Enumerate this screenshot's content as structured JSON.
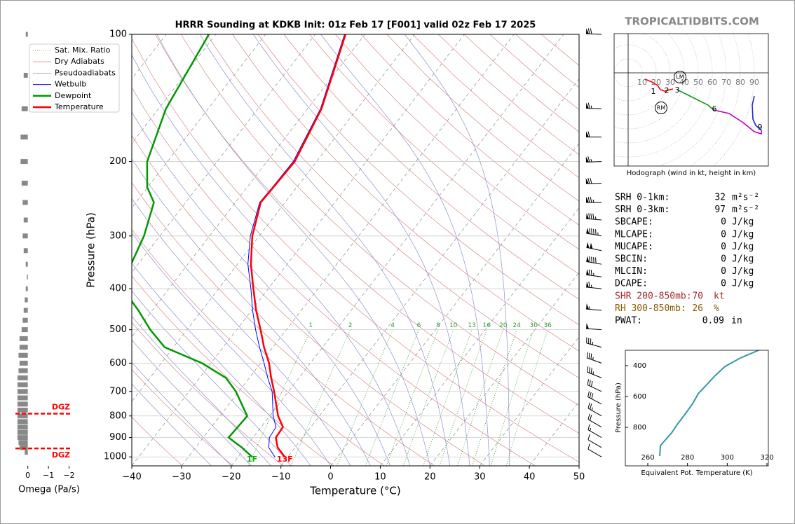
{
  "watermark": "TROPICALTIDBITS.COM",
  "chart_data": [
    {
      "type": "skewt",
      "title": "HRRR Sounding at KDKB Init: 01z Feb 17 [F001] valid 02z Feb 17 2025",
      "xlabel": "Temperature (°C)",
      "ylabel": "Pressure (hPa)",
      "xlim": [
        -40,
        50
      ],
      "xticks": [
        {
          "value": -40,
          "label": "−40"
        },
        {
          "value": -30,
          "label": "−30"
        },
        {
          "value": -20,
          "label": "−20"
        },
        {
          "value": -10,
          "label": "−10"
        },
        0,
        10,
        20,
        30,
        40,
        50
      ],
      "ylim": [
        1050,
        100
      ],
      "yticks": [
        100,
        200,
        300,
        400,
        500,
        600,
        700,
        800,
        900,
        1000
      ],
      "log_y": true,
      "grid": true,
      "pressure": [
        1000,
        950,
        900,
        850,
        800,
        700,
        650,
        600,
        550,
        500,
        450,
        400,
        350,
        300,
        250,
        230,
        200,
        150,
        100
      ],
      "reference_lines": [
        {
          "name": "Sat. Mix. Ratio",
          "color": "#2e9b2e"
        },
        {
          "name": "Dry Adiabats",
          "color": "#d98a8a"
        },
        {
          "name": "Pseudoadiabats",
          "color": "#8f8fcf"
        }
      ],
      "series": [
        {
          "name": "Wetbulb",
          "color": "#0000ff",
          "values": [
            -12.6,
            -15.3,
            -16.7,
            -17.0,
            -19.3,
            -23.3,
            -26.3,
            -29.3,
            -32.7,
            -36.2,
            -39.8,
            -43.5,
            -47.9,
            -51.8,
            -55.1,
            -54.9,
            -54.7,
            -57.4,
            -64.1
          ]
        },
        {
          "name": "Dewpoint",
          "color": "#009900",
          "values": [
            -17.2,
            -20.7,
            -24.9,
            -24.7,
            -24.5,
            -30.6,
            -34.7,
            -41.8,
            -51.8,
            -57.4,
            -62.8,
            -69.3,
            -71.4,
            -73.2,
            -76.4,
            -80.1,
            -84.1,
            -88.5,
            -91.4
          ]
        },
        {
          "name": "Temperature",
          "color": "#ff0000",
          "values": [
            -10.6,
            -13.5,
            -15.4,
            -15.6,
            -18.3,
            -22.9,
            -25.6,
            -28.3,
            -31.8,
            -35.2,
            -39.1,
            -43.0,
            -47.3,
            -51.4,
            -54.9,
            -54.7,
            -54.4,
            -57.2,
            -63.9
          ]
        }
      ],
      "mixing_ratios": [
        1,
        2,
        4,
        6,
        8,
        10,
        13,
        16,
        20,
        24,
        30,
        36
      ],
      "surface_labels": [
        {
          "text": "1F",
          "color": "#11aa11"
        },
        {
          "text": "13F",
          "color": "#ff0000"
        }
      ],
      "winds": {
        "pressure": [
          100,
          150,
          175,
          200,
          225,
          250,
          275,
          300,
          325,
          350,
          375,
          400,
          450,
          500,
          550,
          600,
          650,
          700,
          750,
          800,
          850,
          900,
          950,
          1000
        ],
        "speed": [
          70,
          65,
          60,
          65,
          70,
          75,
          85,
          95,
          100,
          90,
          75,
          65,
          55,
          50,
          35,
          35,
          35,
          30,
          30,
          25,
          20,
          15,
          10,
          10
        ],
        "direction": [
          272,
          272,
          270,
          268,
          268,
          270,
          275,
          280,
          282,
          280,
          278,
          276,
          275,
          274,
          285,
          290,
          292,
          295,
          298,
          300,
          300,
          300,
          300,
          300
        ]
      }
    },
    {
      "type": "omega",
      "xlabel": "Omega (Pa/s)",
      "color": "#888888",
      "xlim": [
        0.6,
        -2.05
      ],
      "xticks": [
        0,
        {
          "value": -1,
          "label": "−1"
        },
        {
          "value": -2,
          "label": "−2"
        }
      ],
      "pressure": [
        100,
        125,
        150,
        175,
        200,
        225,
        250,
        275,
        300,
        325,
        350,
        375,
        400,
        425,
        450,
        475,
        500,
        525,
        550,
        575,
        600,
        625,
        650,
        675,
        700,
        725,
        750,
        775,
        800,
        825,
        850,
        875,
        900,
        925,
        950,
        975
      ],
      "values": [
        0.1,
        0.2,
        0.3,
        0.35,
        0.35,
        0.3,
        0.25,
        0.2,
        0.25,
        0.2,
        0.1,
        0.05,
        0.1,
        0.15,
        0.2,
        0.25,
        0.3,
        0.4,
        0.4,
        0.45,
        0.4,
        0.45,
        0.5,
        0.5,
        0.5,
        0.5,
        0.5,
        0.5,
        0.5,
        0.5,
        0.5,
        0.5,
        0.5,
        0.45,
        0.4,
        0.15
      ],
      "dgz": {
        "label": "DGZ",
        "color": "#ff0000",
        "pressure": [
          790,
          955
        ]
      }
    },
    {
      "type": "hodograph",
      "caption": "Hodograph (wind in kt, height in km)",
      "rings": [
        10,
        20,
        30,
        40,
        50,
        60,
        70,
        80,
        90
      ],
      "segments": [
        {
          "color": "#ff0000",
          "u": [
            12,
            17,
            21,
            23,
            26,
            32
          ],
          "v": [
            -4.5,
            -6.5,
            -9,
            -12,
            -13,
            -11.5
          ]
        },
        {
          "color": "#119911",
          "u": [
            35,
            47,
            57,
            61
          ],
          "v": [
            -12,
            -18,
            -23,
            -26.5
          ]
        },
        {
          "color": "#bb00bb",
          "u": [
            61,
            72,
            82,
            90,
            95,
            95
          ],
          "v": [
            -26.5,
            -29,
            -35.5,
            -42,
            -43.5,
            -41
          ]
        },
        {
          "color": "#2222dd",
          "u": [
            95,
            91,
            89,
            88.5,
            90
          ],
          "v": [
            -41,
            -37.5,
            -33,
            -23,
            -16.5
          ]
        }
      ],
      "heights": {
        "labels": [
          1,
          2,
          3,
          6,
          9
        ],
        "u": [
          18,
          27.5,
          35,
          61.5,
          94
        ],
        "v": [
          -13.5,
          -13,
          -12.5,
          -26,
          -39
        ]
      },
      "motions": {
        "labels": [
          "LM",
          "RM"
        ],
        "u": [
          37,
          23.5
        ],
        "v": [
          -3,
          -25
        ]
      }
    },
    {
      "type": "line",
      "xlabel": "Equivalent Pot. Temperature (K)",
      "ylabel": "Pressure (hPa)",
      "color": "#3399aa",
      "xlim": [
        248.7,
        320.7
      ],
      "xticks": [
        260,
        280,
        300,
        320
      ],
      "ylim": [
        1050,
        300
      ],
      "yticks": [
        400,
        600,
        800
      ],
      "values": [
        266.0,
        266.4,
        269.2,
        272.0,
        274.8,
        279.1,
        282.6,
        285.4,
        289.7,
        293.9,
        298.9,
        306.6,
        315.8
      ],
      "pressure": [
        986,
        918,
        877,
        836,
        782,
        709,
        645,
        582,
        523,
        464,
        405,
        350,
        300
      ]
    }
  ],
  "indices": [
    {
      "label": "SRH 0-1km:",
      "value": 32,
      "unit": "m²s⁻²",
      "color": "#000000"
    },
    {
      "label": "SRH 0-3km:",
      "value": 97,
      "unit": "m²s⁻²",
      "color": "#000000"
    },
    {
      "label": "SBCAPE:",
      "value": 0,
      "unit": "J/kg",
      "color": "#000000"
    },
    {
      "label": "MLCAPE:",
      "value": 0,
      "unit": "J/kg",
      "color": "#000000"
    },
    {
      "label": "MUCAPE:",
      "value": 0,
      "unit": "J/kg",
      "color": "#000000"
    },
    {
      "label": "SBCIN:",
      "value": 0,
      "unit": "J/kg",
      "color": "#000000"
    },
    {
      "label": "MLCIN:",
      "value": 0,
      "unit": "J/kg",
      "color": "#000000"
    },
    {
      "label": "DCAPE:",
      "value": 0,
      "unit": "J/kg",
      "color": "#000000"
    },
    {
      "label": "SHR 200-850mb:",
      "value": 70,
      "unit": "kt",
      "color": "#a52a2a"
    },
    {
      "label": "RH 300-850mb:",
      "value": 26,
      "unit": "%",
      "color": "#8b5a00"
    },
    {
      "label": "PWAT:",
      "value": 0.09,
      "unit": "in",
      "color": "#000000"
    }
  ]
}
